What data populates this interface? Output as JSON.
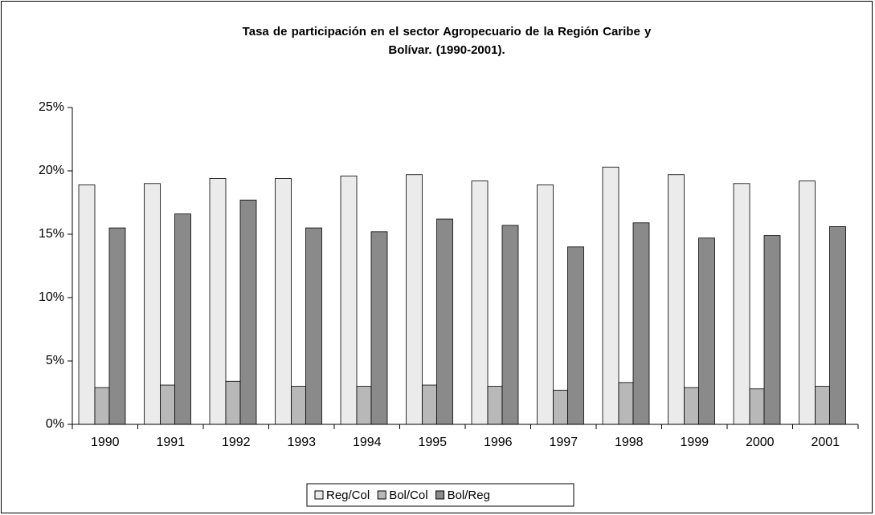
{
  "chart_data": {
    "type": "bar",
    "title": "Tasa de participación en el sector Agropecuario de la Región Caribe y Bolívar. (1990-2001).",
    "categories": [
      "1990",
      "1991",
      "1992",
      "1993",
      "1994",
      "1995",
      "1996",
      "1997",
      "1998",
      "1999",
      "2000",
      "2001"
    ],
    "series": [
      {
        "name": "Reg/Col",
        "color": "#ebebeb",
        "values": [
          18.9,
          19.0,
          19.4,
          19.4,
          19.6,
          19.7,
          19.2,
          18.9,
          20.3,
          19.7,
          19.0,
          19.2
        ]
      },
      {
        "name": "Bol/Col",
        "color": "#b8b8b8",
        "values": [
          2.9,
          3.1,
          3.4,
          3.0,
          3.0,
          3.1,
          3.0,
          2.7,
          3.3,
          2.9,
          2.8,
          3.0
        ]
      },
      {
        "name": "Bol/Reg",
        "color": "#8a8a8a",
        "values": [
          15.5,
          16.6,
          17.7,
          15.5,
          15.2,
          16.2,
          15.7,
          14.0,
          15.9,
          14.7,
          14.9,
          15.6
        ]
      }
    ],
    "ylim": [
      0,
      25
    ],
    "yticks": [
      {
        "value": 0,
        "label": "0%"
      },
      {
        "value": 5,
        "label": "5%"
      },
      {
        "value": 10,
        "label": "10%"
      },
      {
        "value": 15,
        "label": "15%"
      },
      {
        "value": 20,
        "label": "20%"
      },
      {
        "value": 25,
        "label": "25%"
      }
    ],
    "legend": "bottom"
  }
}
